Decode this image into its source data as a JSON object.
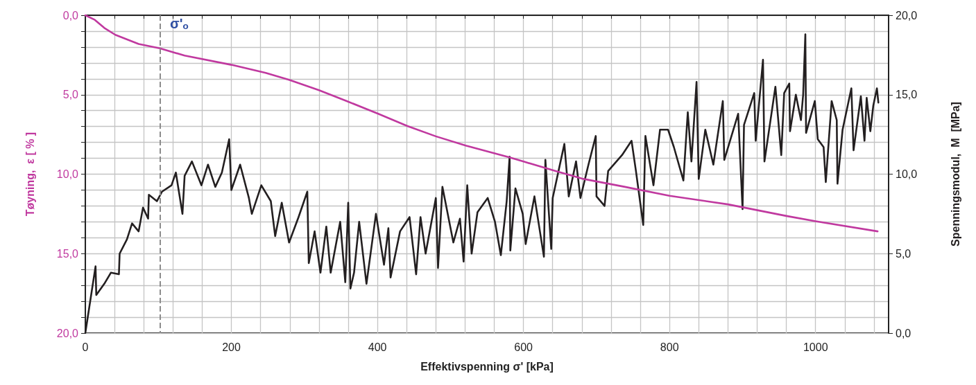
{
  "chart_data": {
    "type": "line",
    "xlabel": "Effektivspenning σ' [kPa]",
    "ylabel": "Tøyning,  ε [ % ]",
    "y2label": "Spenningsmodul,  M  [MPa]",
    "xlim": [
      0,
      1100
    ],
    "xticks": [
      0,
      {
        "value": 40,
        "label": null
      },
      {
        "value": 80,
        "label": null
      },
      {
        "value": 120,
        "label": null
      },
      {
        "value": 160,
        "label": null
      },
      200,
      {
        "value": 240,
        "label": null
      },
      {
        "value": 280,
        "label": null
      },
      {
        "value": 320,
        "label": null
      },
      {
        "value": 360,
        "label": null
      },
      400,
      {
        "value": 440,
        "label": null
      },
      {
        "value": 480,
        "label": null
      },
      {
        "value": 520,
        "label": null
      },
      {
        "value": 560,
        "label": null
      },
      600,
      {
        "value": 640,
        "label": null
      },
      {
        "value": 680,
        "label": null
      },
      {
        "value": 720,
        "label": null
      },
      {
        "value": 760,
        "label": null
      },
      800,
      {
        "value": 840,
        "label": null
      },
      {
        "value": 880,
        "label": null
      },
      {
        "value": 920,
        "label": null
      },
      {
        "value": 960,
        "label": null
      },
      1000,
      {
        "value": 1040,
        "label": null
      },
      {
        "value": 1080,
        "label": null
      }
    ],
    "ylim": [
      20,
      0
    ],
    "yticks": [
      {
        "value": 0,
        "label": "0,0"
      },
      {
        "value": 1,
        "label": null
      },
      {
        "value": 2,
        "label": null
      },
      {
        "value": 3,
        "label": null
      },
      {
        "value": 4,
        "label": null
      },
      {
        "value": 5,
        "label": "5,0"
      },
      {
        "value": 6,
        "label": null
      },
      {
        "value": 7,
        "label": null
      },
      {
        "value": 8,
        "label": null
      },
      {
        "value": 9,
        "label": null
      },
      {
        "value": 10,
        "label": "10,0"
      },
      {
        "value": 11,
        "label": null
      },
      {
        "value": 12,
        "label": null
      },
      {
        "value": 13,
        "label": null
      },
      {
        "value": 14,
        "label": null
      },
      {
        "value": 15,
        "label": "15,0"
      },
      {
        "value": 16,
        "label": null
      },
      {
        "value": 17,
        "label": null
      },
      {
        "value": 18,
        "label": null
      },
      {
        "value": 19,
        "label": null
      },
      {
        "value": 20,
        "label": "20,0"
      }
    ],
    "y2lim": [
      0,
      20
    ],
    "y2ticks": [
      {
        "value": 0,
        "label": "0,0"
      },
      {
        "value": 5,
        "label": "5,0"
      },
      {
        "value": 10,
        "label": "10,0"
      },
      {
        "value": 15,
        "label": "15,0"
      },
      {
        "value": 20,
        "label": "20,0"
      }
    ],
    "grid": true,
    "marker": "none",
    "line_style": "solid",
    "ref_lines": [
      {
        "axis": "x",
        "value": 102,
        "label": "σ'ₒ",
        "color": "#8c8c8c",
        "line_style": "dashed"
      }
    ],
    "series": [
      {
        "color": "#c0399f",
        "x": [
          0,
          13,
          26,
          41,
          73,
          102,
          136,
          200,
          247,
          279,
          320,
          358,
          401,
          441,
          480,
          521,
          580,
          601,
          644,
          682,
          739,
          800,
          880,
          960,
          1000,
          1085
        ],
        "values": [
          0,
          0.29,
          0.8,
          1.23,
          1.81,
          2.08,
          2.54,
          3.12,
          3.63,
          4.06,
          4.72,
          5.4,
          6.2,
          6.97,
          7.62,
          8.2,
          8.93,
          9.22,
          9.8,
          10.3,
          10.8,
          11.36,
          11.9,
          12.63,
          12.96,
          13.6
        ]
      },
      {
        "color": "#231f20",
        "axis": "y2",
        "x": [
          0,
          14,
          15,
          26,
          35,
          46,
          47,
          57,
          64,
          73,
          79,
          86,
          87,
          98,
          105,
          118,
          124,
          133,
          136,
          146,
          159,
          168,
          178,
          187,
          197,
          200,
          212,
          224,
          228,
          241,
          254,
          260,
          269,
          279,
          292,
          304,
          306,
          314,
          322,
          330,
          336,
          349,
          356,
          360,
          363,
          368,
          375,
          385,
          398,
          409,
          415,
          418,
          431,
          444,
          453,
          459,
          466,
          480,
          483,
          489,
          504,
          513,
          518,
          523,
          529,
          537,
          551,
          561,
          569,
          577,
          581,
          582,
          589,
          599,
          603,
          615,
          628,
          630,
          638,
          640,
          656,
          662,
          672,
          678,
          689,
          699,
          700,
          711,
          716,
          735,
          748,
          754,
          764,
          767,
          778,
          787,
          798,
          806,
          819,
          825,
          830,
          837,
          840,
          849,
          860,
          873,
          875,
          894,
          900,
          902,
          916,
          918,
          928,
          930,
          945,
          953,
          957,
          964,
          965,
          973,
          980,
          983,
          986,
          987,
          999,
          1003,
          1011,
          1014,
          1022,
          1029,
          1030,
          1037,
          1049,
          1052,
          1062,
          1067,
          1070,
          1075,
          1079,
          1084,
          1086
        ],
        "values": [
          0,
          4.2,
          2.4,
          3.1,
          3.8,
          3.7,
          5.0,
          5.9,
          6.9,
          6.4,
          7.9,
          7.2,
          8.7,
          8.3,
          8.9,
          9.3,
          10.1,
          7.5,
          9.9,
          10.8,
          9.3,
          10.6,
          9.2,
          10.1,
          12.2,
          9.0,
          10.6,
          8.5,
          7.5,
          9.3,
          8.3,
          6.1,
          8.2,
          5.7,
          7.3,
          8.9,
          4.4,
          6.4,
          3.8,
          6.7,
          3.8,
          7.0,
          3.2,
          8.2,
          2.8,
          3.8,
          7.0,
          3.1,
          7.5,
          4.3,
          6.6,
          3.5,
          6.4,
          7.3,
          3.7,
          7.3,
          5.0,
          8.5,
          4.1,
          9.2,
          5.7,
          7.2,
          4.5,
          9.3,
          5.0,
          7.6,
          8.5,
          7.0,
          4.9,
          8.3,
          11.1,
          5.2,
          9.1,
          7.5,
          5.6,
          8.6,
          4.8,
          10.9,
          5.3,
          8.5,
          11.9,
          8.6,
          10.8,
          8.5,
          10.6,
          12.4,
          8.6,
          8.0,
          10.2,
          11.2,
          12.1,
          10.2,
          6.8,
          12.4,
          9.3,
          12.8,
          12.8,
          11.7,
          9.6,
          13.9,
          10.8,
          15.8,
          9.7,
          12.8,
          10.6,
          14.6,
          10.9,
          13.8,
          7.8,
          13.1,
          15.1,
          12.1,
          17.2,
          10.8,
          15.5,
          11.2,
          15.1,
          15.7,
          12.7,
          15.0,
          13.4,
          15.0,
          18.8,
          12.6,
          14.6,
          12.2,
          11.7,
          9.5,
          14.6,
          13.4,
          9.4,
          12.8,
          15.4,
          11.5,
          14.9,
          12.1,
          14.8,
          12.7,
          14.3,
          15.4,
          14.5
        ]
      }
    ]
  }
}
